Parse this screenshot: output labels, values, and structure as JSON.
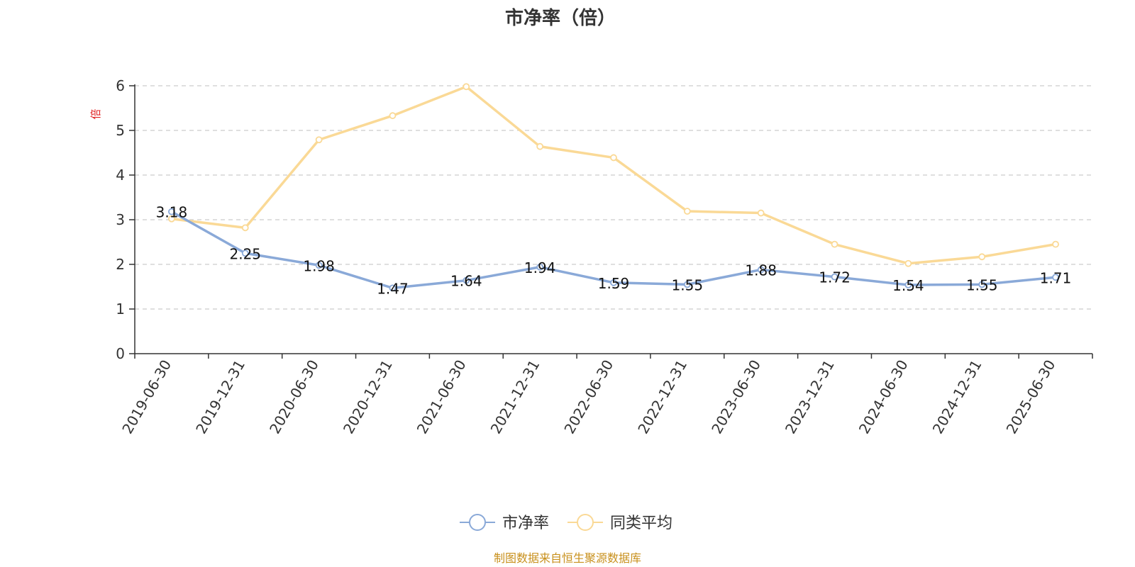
{
  "chart_data": {
    "type": "line",
    "title": "市净率（倍）",
    "ylabel": "倍",
    "xlabel": "",
    "ylim": [
      0,
      6
    ],
    "yticks": [
      0,
      1,
      2,
      3,
      4,
      5,
      6
    ],
    "grid": true,
    "legend_position": "bottom-center",
    "categories": [
      "2019-06-30",
      "2019-12-31",
      "2020-06-30",
      "2020-12-31",
      "2021-06-30",
      "2021-12-31",
      "2022-06-30",
      "2022-12-31",
      "2023-06-30",
      "2023-12-31",
      "2024-06-30",
      "2024-12-31",
      "2025-06-30"
    ],
    "series": [
      {
        "name": "市净率",
        "color": "#8aa9d8",
        "values": [
          3.18,
          2.25,
          1.98,
          1.47,
          1.64,
          1.94,
          1.59,
          1.55,
          1.88,
          1.72,
          1.54,
          1.55,
          1.71
        ],
        "labels": [
          "3.18",
          "2.25",
          "1.98",
          "1.47",
          "1.64",
          "1.94",
          "1.59",
          "1.55",
          "1.88",
          "1.72",
          "1.54",
          "1.55",
          "1.71"
        ],
        "show_labels": true
      },
      {
        "name": "同类平均",
        "color": "#fad996",
        "values": [
          3.02,
          2.82,
          4.79,
          5.33,
          5.98,
          4.64,
          4.39,
          3.19,
          3.15,
          2.45,
          2.02,
          2.17,
          2.45
        ],
        "show_labels": false
      }
    ],
    "source": "制图数据来自恒生聚源数据库"
  },
  "colors": {
    "axis": "#333333",
    "grid": "#cccccc",
    "ylabel": "#e02020",
    "source": "#c8901c"
  }
}
